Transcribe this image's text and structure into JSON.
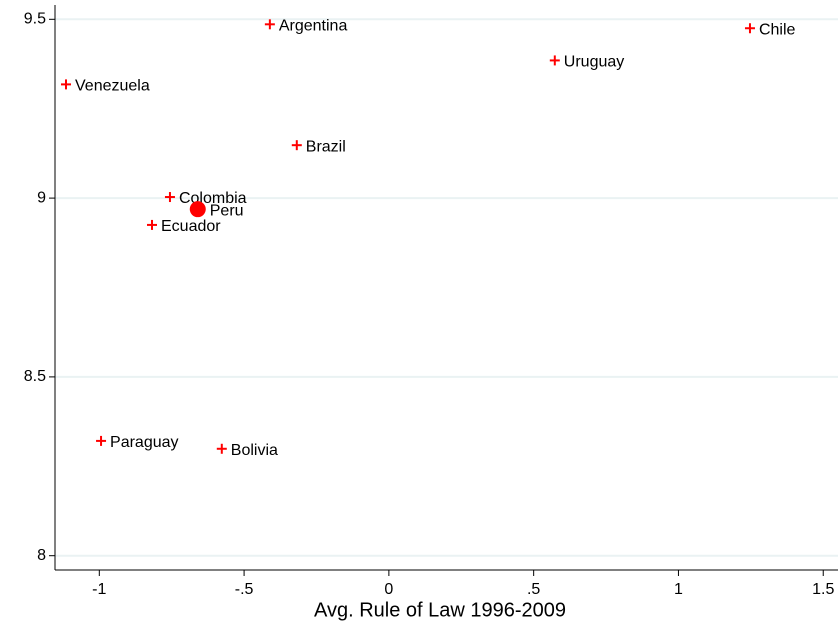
{
  "chart_data": {
    "type": "scatter",
    "xlabel": "Avg. Rule of Law 1996-2009",
    "xlim": [
      -1.153,
      1.551
    ],
    "xticks": [
      -1,
      {
        "value": -0.5,
        "label": "-.5"
      },
      0,
      {
        "value": 0.5,
        "label": ".5"
      },
      1,
      1.5
    ],
    "ylim": [
      7.96,
      9.54
    ],
    "yticks": [
      8,
      8.5,
      9,
      9.5
    ],
    "grid": true,
    "series": [
      {
        "color": "#ff0000",
        "marker": "plus",
        "labels": [
          "Argentina",
          "Chile",
          "Uruguay",
          "Venezuela",
          "Brazil",
          "Colombia",
          "Ecuador",
          "Paraguay",
          "Bolivia"
        ],
        "x": [
          -0.411,
          1.247,
          0.573,
          -1.115,
          -0.318,
          -0.756,
          -0.818,
          -0.994,
          -0.577
        ],
        "values": [
          9.486,
          9.475,
          9.385,
          9.318,
          9.148,
          9.003,
          8.925,
          8.321,
          8.299
        ]
      },
      {
        "color": "#ff0000",
        "marker": "circle",
        "labels": [
          "Peru"
        ],
        "x": [
          -0.66
        ],
        "values": [
          8.969
        ]
      }
    ]
  }
}
